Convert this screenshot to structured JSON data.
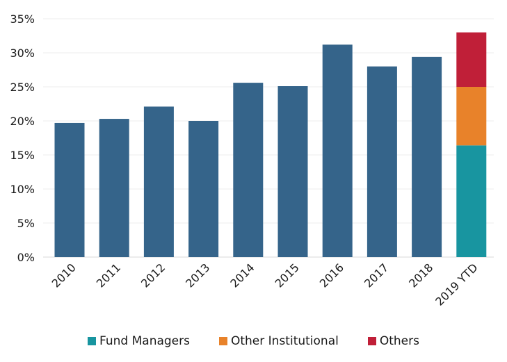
{
  "chart_data": {
    "type": "bar",
    "title": "",
    "xlabel": "",
    "ylabel": "",
    "ylim": [
      0,
      35
    ],
    "y_ticks": [
      {
        "value": 0,
        "label": "0%"
      },
      {
        "value": 5,
        "label": "5%"
      },
      {
        "value": 10,
        "label": "10%"
      },
      {
        "value": 15,
        "label": "15%"
      },
      {
        "value": 20,
        "label": "20%"
      },
      {
        "value": 25,
        "label": "25%"
      },
      {
        "value": 30,
        "label": "30%"
      },
      {
        "value": 35,
        "label": "35%"
      }
    ],
    "grid": true,
    "categories": [
      "2010",
      "2011",
      "2012",
      "2013",
      "2014",
      "2015",
      "2016",
      "2017",
      "2018",
      "2019 YTD"
    ],
    "total_values": [
      19.7,
      20.3,
      22.1,
      20.0,
      25.6,
      25.1,
      31.2,
      28.0,
      29.4,
      null
    ],
    "stacked_2019": [
      {
        "name": "Fund Managers",
        "value": 16.4
      },
      {
        "name": "Other Institutional",
        "value": 8.6
      },
      {
        "name": "Others",
        "value": 8.0
      }
    ],
    "legend_position": "bottom",
    "colors": {
      "total": "#35648a",
      "Fund Managers": "#1895a0",
      "Other Institutional": "#e8822a",
      "Others": "#c01f38",
      "grid": "#ececec"
    }
  },
  "legend": [
    {
      "name": "Fund Managers",
      "label": "Fund Managers"
    },
    {
      "name": "Other Institutional",
      "label": "Other Institutional"
    },
    {
      "name": "Others",
      "label": "Others"
    }
  ]
}
